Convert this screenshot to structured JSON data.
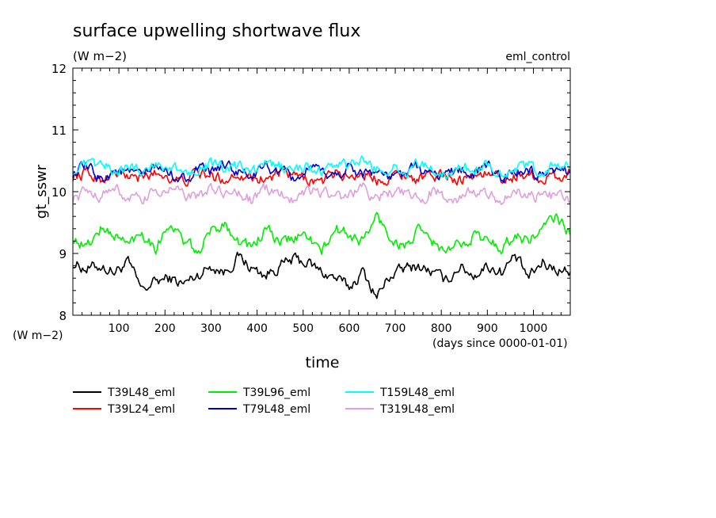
{
  "chart_data": {
    "type": "line",
    "title": "surface upwelling shortwave flux",
    "units": "(W m−2)",
    "run_label": "eml_control",
    "ylabel": "gt_sswr",
    "yunits_label": "(W m−2)",
    "xlabel": "time",
    "xunits_label": "(days since 0000-01-01)",
    "xlim": [
      0,
      1080
    ],
    "ylim": [
      8,
      12
    ],
    "x_ticks": [
      100,
      200,
      300,
      400,
      500,
      600,
      700,
      800,
      900,
      1000
    ],
    "y_ticks": [
      8,
      9,
      10,
      11,
      12
    ],
    "grid": false,
    "legend_position": "bottom",
    "series": [
      {
        "name": "T39L48_eml",
        "color": "#000000",
        "x": [
          0,
          30,
          60,
          90,
          120,
          150,
          180,
          210,
          240,
          270,
          300,
          330,
          360,
          390,
          420,
          450,
          480,
          510,
          540,
          570,
          600,
          630,
          660,
          690,
          720,
          750,
          780,
          810,
          840,
          870,
          900,
          930,
          960,
          990,
          1020,
          1050,
          1080
        ],
        "values": [
          8.85,
          8.75,
          8.8,
          8.7,
          8.85,
          8.4,
          8.55,
          8.6,
          8.5,
          8.65,
          8.8,
          8.7,
          8.95,
          8.75,
          8.65,
          8.8,
          8.9,
          8.85,
          8.7,
          8.6,
          8.45,
          8.7,
          8.3,
          8.65,
          8.75,
          8.8,
          8.7,
          8.55,
          8.8,
          8.65,
          8.8,
          8.7,
          8.95,
          8.6,
          8.85,
          8.75,
          8.7
        ]
      },
      {
        "name": "T39L24_eml",
        "color": "#ff0000",
        "x": [
          0,
          30,
          60,
          90,
          120,
          150,
          180,
          210,
          240,
          270,
          300,
          330,
          360,
          390,
          420,
          450,
          480,
          510,
          540,
          570,
          600,
          630,
          660,
          690,
          720,
          750,
          780,
          810,
          840,
          870,
          900,
          930,
          960,
          990,
          1020,
          1050,
          1080
        ],
        "values": [
          10.25,
          10.3,
          10.2,
          10.3,
          10.25,
          10.2,
          10.3,
          10.25,
          10.15,
          10.3,
          10.25,
          10.2,
          10.3,
          10.25,
          10.2,
          10.3,
          10.25,
          10.2,
          10.15,
          10.3,
          10.25,
          10.3,
          10.2,
          10.25,
          10.3,
          10.2,
          10.25,
          10.3,
          10.2,
          10.25,
          10.3,
          10.2,
          10.25,
          10.3,
          10.2,
          10.25,
          10.3
        ]
      },
      {
        "name": "T39L96_eml",
        "color": "#00ee00",
        "x": [
          0,
          30,
          60,
          90,
          120,
          150,
          180,
          210,
          240,
          270,
          300,
          330,
          360,
          390,
          420,
          450,
          480,
          510,
          540,
          570,
          600,
          630,
          660,
          690,
          720,
          750,
          780,
          810,
          840,
          870,
          900,
          930,
          960,
          990,
          1020,
          1050,
          1080
        ],
        "values": [
          9.25,
          9.1,
          9.4,
          9.3,
          9.15,
          9.35,
          9.1,
          9.5,
          9.2,
          9.0,
          9.35,
          9.5,
          9.2,
          9.1,
          9.4,
          9.15,
          9.25,
          9.3,
          9.0,
          9.4,
          9.3,
          9.2,
          9.6,
          9.25,
          9.1,
          9.35,
          9.2,
          9.0,
          9.15,
          9.3,
          9.2,
          9.1,
          9.3,
          9.2,
          9.4,
          9.6,
          9.3
        ]
      },
      {
        "name": "T79L48_eml",
        "color": "#0000cc",
        "x": [
          0,
          30,
          60,
          90,
          120,
          150,
          180,
          210,
          240,
          270,
          300,
          330,
          360,
          390,
          420,
          450,
          480,
          510,
          540,
          570,
          600,
          630,
          660,
          690,
          720,
          750,
          780,
          810,
          840,
          870,
          900,
          930,
          960,
          990,
          1020,
          1050,
          1080
        ],
        "values": [
          10.3,
          10.4,
          10.2,
          10.35,
          10.3,
          10.25,
          10.4,
          10.3,
          10.2,
          10.35,
          10.3,
          10.45,
          10.3,
          10.25,
          10.4,
          10.3,
          10.2,
          10.35,
          10.3,
          10.25,
          10.4,
          10.3,
          10.35,
          10.2,
          10.3,
          10.4,
          10.25,
          10.3,
          10.35,
          10.3,
          10.4,
          10.25,
          10.3,
          10.35,
          10.2,
          10.3,
          10.35
        ]
      },
      {
        "name": "T159L48_eml",
        "color": "#00ffff",
        "x": [
          0,
          30,
          60,
          90,
          120,
          150,
          180,
          210,
          240,
          270,
          300,
          330,
          360,
          390,
          420,
          450,
          480,
          510,
          540,
          570,
          600,
          630,
          660,
          690,
          720,
          750,
          780,
          810,
          840,
          870,
          900,
          930,
          960,
          990,
          1020,
          1050,
          1080
        ],
        "values": [
          10.35,
          10.4,
          10.45,
          10.3,
          10.4,
          10.35,
          10.45,
          10.4,
          10.3,
          10.4,
          10.45,
          10.35,
          10.4,
          10.3,
          10.45,
          10.4,
          10.35,
          10.4,
          10.3,
          10.45,
          10.4,
          10.5,
          10.35,
          10.4,
          10.3,
          10.45,
          10.35,
          10.3,
          10.4,
          10.35,
          10.45,
          10.3,
          10.35,
          10.4,
          10.3,
          10.45,
          10.4
        ]
      },
      {
        "name": "T319L48_eml",
        "color": "#dda0dd",
        "x": [
          0,
          30,
          60,
          90,
          120,
          150,
          180,
          210,
          240,
          270,
          300,
          330,
          360,
          390,
          420,
          450,
          480,
          510,
          540,
          570,
          600,
          630,
          660,
          690,
          720,
          750,
          780,
          810,
          840,
          870,
          900,
          930,
          960,
          990,
          1020,
          1050,
          1080
        ],
        "values": [
          9.9,
          10.0,
          9.95,
          10.05,
          9.9,
          9.85,
          10.0,
          10.05,
          9.95,
          9.9,
          10.05,
          9.95,
          10.0,
          9.85,
          10.05,
          9.95,
          9.9,
          10.05,
          10.0,
          9.9,
          9.95,
          10.05,
          9.9,
          10.0,
          9.95,
          9.85,
          10.0,
          9.95,
          9.9,
          10.0,
          9.95,
          9.85,
          10.0,
          9.95,
          9.9,
          9.95,
          9.85
        ]
      }
    ]
  }
}
